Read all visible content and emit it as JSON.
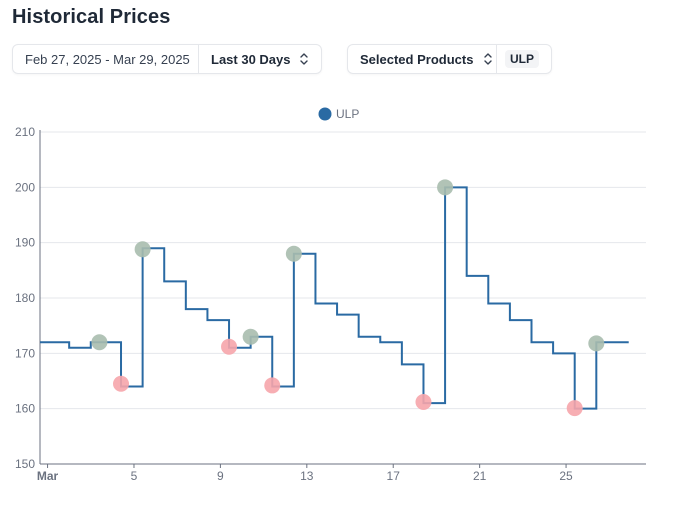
{
  "page": {
    "title": "Historical Prices"
  },
  "controls": {
    "date_range": "Feb 27, 2025 - Mar 29, 2025",
    "period_label": "Last 30 Days",
    "products_label": "Selected Products",
    "product_chip": "ULP"
  },
  "colors": {
    "line": "#2a6aa3",
    "legend": "#2a6aa3",
    "high_marker": "#a9bcae",
    "low_marker": "#f6a5ab"
  },
  "chart_data": {
    "type": "line",
    "step": true,
    "ylim": [
      150,
      210
    ],
    "yticks": [
      150,
      160,
      170,
      180,
      190,
      200,
      210
    ],
    "x_ticks": [
      {
        "day": 0,
        "label": "Mar"
      },
      {
        "day": 4,
        "label": "5"
      },
      {
        "day": 8,
        "label": "9"
      },
      {
        "day": 12,
        "label": "13"
      },
      {
        "day": 16,
        "label": "17"
      },
      {
        "day": 20,
        "label": "21"
      },
      {
        "day": 24,
        "label": "25"
      }
    ],
    "x_range": [
      -0.35,
      27.7
    ],
    "series": [
      {
        "name": "ULP",
        "x_start": -0.35,
        "x_end": 26.9,
        "steps": [
          {
            "day": -0.35,
            "value": 172
          },
          {
            "day": 1.0,
            "value": 171
          },
          {
            "day": 2.0,
            "value": 172
          },
          {
            "day": 3.0,
            "value": 172
          },
          {
            "day": 3.4,
            "value": 164
          },
          {
            "day": 4.4,
            "value": 189
          },
          {
            "day": 5.4,
            "value": 183
          },
          {
            "day": 6.4,
            "value": 178
          },
          {
            "day": 7.4,
            "value": 176
          },
          {
            "day": 8.4,
            "value": 171
          },
          {
            "day": 9.4,
            "value": 173
          },
          {
            "day": 10.4,
            "value": 164
          },
          {
            "day": 11.4,
            "value": 188
          },
          {
            "day": 12.4,
            "value": 179
          },
          {
            "day": 13.4,
            "value": 177
          },
          {
            "day": 14.4,
            "value": 173
          },
          {
            "day": 15.4,
            "value": 172
          },
          {
            "day": 16.4,
            "value": 168
          },
          {
            "day": 17.4,
            "value": 161
          },
          {
            "day": 18.4,
            "value": 200
          },
          {
            "day": 19.4,
            "value": 184
          },
          {
            "day": 20.4,
            "value": 179
          },
          {
            "day": 21.4,
            "value": 176
          },
          {
            "day": 22.4,
            "value": 172
          },
          {
            "day": 23.4,
            "value": 170
          },
          {
            "day": 24.4,
            "value": 160
          },
          {
            "day": 25.4,
            "value": 172
          }
        ]
      }
    ],
    "markers": [
      {
        "day": 2.4,
        "value": 172,
        "kind": "high"
      },
      {
        "day": 3.4,
        "value": 164.5,
        "kind": "low"
      },
      {
        "day": 4.4,
        "value": 188.8,
        "kind": "high"
      },
      {
        "day": 8.4,
        "value": 171.2,
        "kind": "low"
      },
      {
        "day": 9.4,
        "value": 173,
        "kind": "high"
      },
      {
        "day": 10.4,
        "value": 164.2,
        "kind": "low"
      },
      {
        "day": 11.4,
        "value": 188,
        "kind": "high"
      },
      {
        "day": 17.4,
        "value": 161.2,
        "kind": "low"
      },
      {
        "day": 18.4,
        "value": 200,
        "kind": "high"
      },
      {
        "day": 24.4,
        "value": 160.1,
        "kind": "low"
      },
      {
        "day": 25.4,
        "value": 171.8,
        "kind": "high"
      }
    ]
  }
}
